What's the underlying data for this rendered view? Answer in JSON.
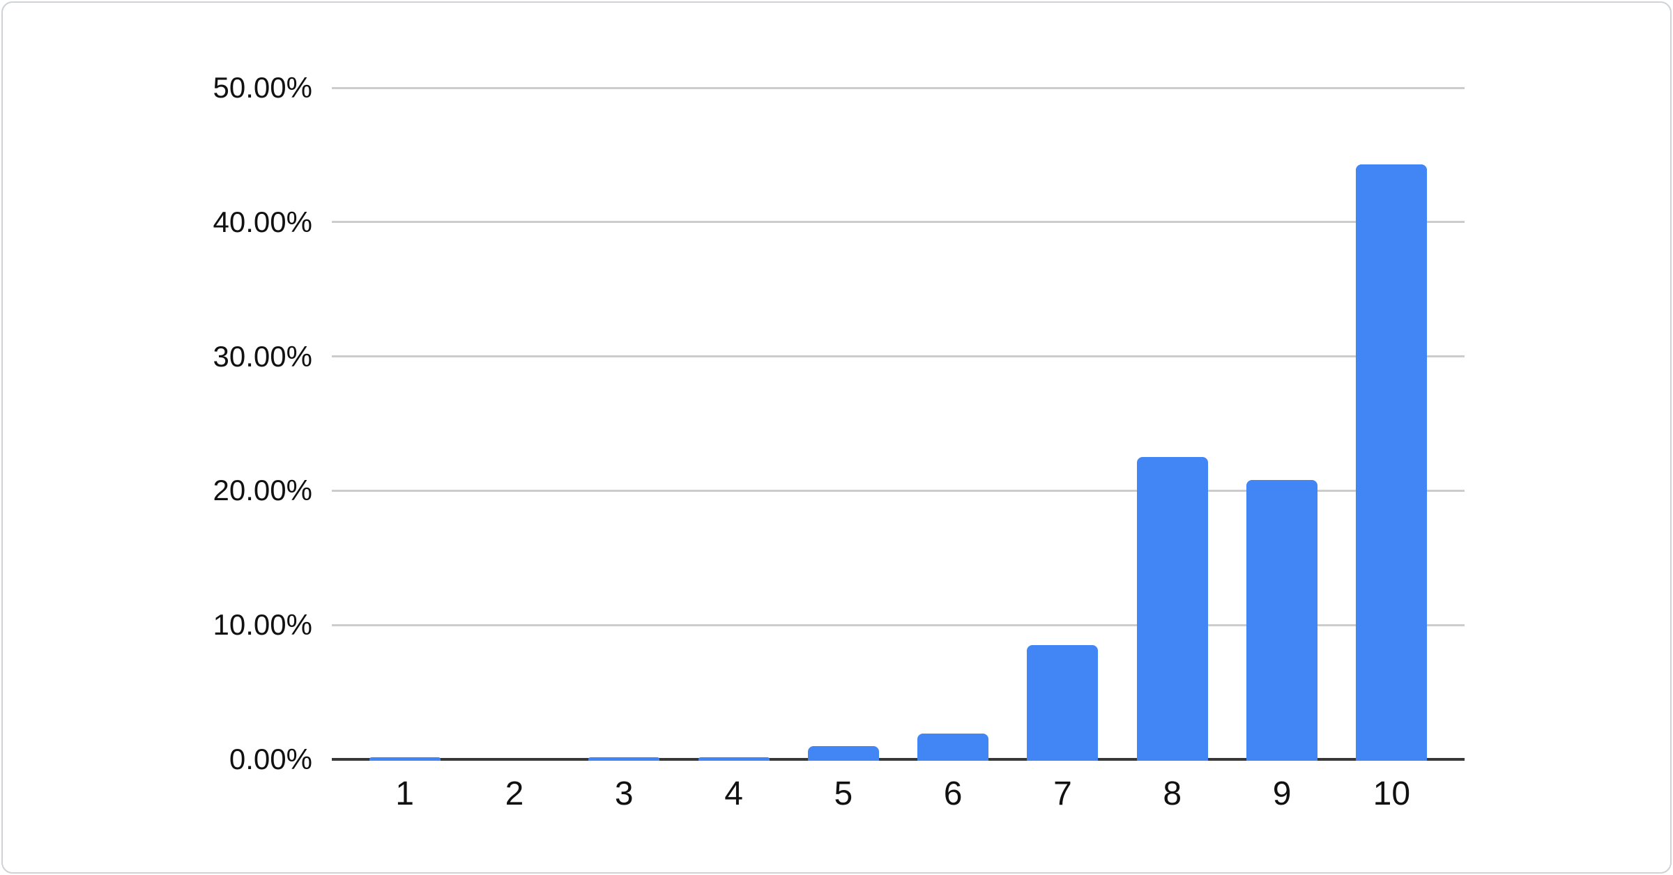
{
  "chart_data": {
    "type": "bar",
    "title": "",
    "xlabel": "",
    "ylabel": "",
    "categories": [
      "1",
      "2",
      "3",
      "4",
      "5",
      "6",
      "7",
      "8",
      "9",
      "10"
    ],
    "values": [
      0.1,
      0,
      0.1,
      0.1,
      1.0,
      1.9,
      8.5,
      22.5,
      20.8,
      44.3
    ],
    "yticks": [
      "0.00%",
      "10.00%",
      "20.00%",
      "30.00%",
      "40.00%",
      "50.00%"
    ],
    "ytick_values": [
      0,
      10,
      20,
      30,
      40,
      50
    ],
    "ylim": [
      0,
      50
    ],
    "legend": "none",
    "grid": "horizontal",
    "bar_color": "#4285F4",
    "gridline_color": "#cccccc",
    "axis_line_color": "#383838",
    "label_color": "#111111",
    "card_border_color": "#ced2d6",
    "background_color": "#ffffff"
  }
}
